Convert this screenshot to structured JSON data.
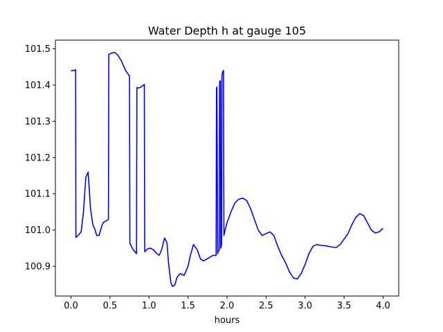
{
  "chart_data": {
    "type": "line",
    "title": "Water Depth h at gauge 105",
    "xlabel": "hours",
    "ylabel": "",
    "xlim": [
      -0.2,
      4.2
    ],
    "ylim": [
      100.818,
      101.524
    ],
    "xticks": [
      0.0,
      0.5,
      1.0,
      1.5,
      2.0,
      2.5,
      3.0,
      3.5,
      4.0
    ],
    "xtick_labels": [
      "0.0",
      "0.5",
      "1.0",
      "1.5",
      "2.0",
      "2.5",
      "3.0",
      "3.5",
      "4.0"
    ],
    "yticks": [
      100.9,
      101.0,
      101.1,
      101.2,
      101.3,
      101.4,
      101.5
    ],
    "ytick_labels": [
      "100.9",
      "101.0",
      "101.1",
      "101.2",
      "101.3",
      "101.4",
      "101.5"
    ],
    "grid": false,
    "series": [
      {
        "color": "#0000ff",
        "x": [
          0.0,
          0.03,
          0.06,
          0.063,
          0.09,
          0.13,
          0.16,
          0.19,
          0.22,
          0.25,
          0.28,
          0.31,
          0.33,
          0.36,
          0.38,
          0.4,
          0.42,
          0.45,
          0.48,
          0.485,
          0.52,
          0.56,
          0.6,
          0.65,
          0.7,
          0.75,
          0.755,
          0.8,
          0.84,
          0.845,
          0.87,
          0.9,
          0.94,
          0.945,
          0.98,
          1.02,
          1.06,
          1.1,
          1.13,
          1.16,
          1.2,
          1.23,
          1.25,
          1.28,
          1.3,
          1.33,
          1.36,
          1.4,
          1.45,
          1.5,
          1.53,
          1.57,
          1.62,
          1.66,
          1.7,
          1.74,
          1.78,
          1.82,
          1.86,
          1.865,
          1.87,
          1.88,
          1.885,
          1.9,
          1.905,
          1.915,
          1.92,
          1.925,
          1.93,
          1.935,
          1.945,
          1.95,
          1.955,
          1.96,
          1.965,
          1.975,
          2.0,
          2.05,
          2.1,
          2.15,
          2.2,
          2.25,
          2.3,
          2.35,
          2.4,
          2.45,
          2.5,
          2.55,
          2.6,
          2.65,
          2.7,
          2.75,
          2.8,
          2.85,
          2.9,
          2.95,
          3.0,
          3.05,
          3.1,
          3.15,
          3.2,
          3.25,
          3.3,
          3.35,
          3.4,
          3.45,
          3.5,
          3.55,
          3.6,
          3.65,
          3.7,
          3.75,
          3.8,
          3.85,
          3.9,
          3.95,
          4.0
        ],
        "y": [
          101.44,
          101.44,
          101.442,
          100.98,
          100.985,
          100.995,
          101.05,
          101.145,
          101.16,
          101.06,
          101.015,
          101.0,
          100.985,
          100.985,
          101.0,
          101.015,
          101.022,
          101.025,
          101.03,
          101.485,
          101.488,
          101.49,
          101.483,
          101.465,
          101.44,
          101.425,
          100.963,
          100.945,
          100.935,
          101.393,
          101.392,
          101.395,
          101.402,
          100.94,
          100.948,
          100.95,
          100.945,
          100.935,
          100.93,
          100.945,
          100.978,
          100.965,
          100.91,
          100.855,
          100.845,
          100.848,
          100.87,
          100.88,
          100.875,
          100.9,
          100.93,
          100.96,
          100.945,
          100.92,
          100.915,
          100.92,
          100.925,
          100.93,
          100.93,
          101.39,
          101.395,
          100.935,
          100.94,
          100.945,
          101.41,
          101.412,
          100.95,
          100.955,
          100.96,
          101.43,
          101.435,
          101.44,
          101.44,
          100.985,
          100.99,
          101.0,
          101.02,
          101.05,
          101.075,
          101.085,
          101.088,
          101.082,
          101.06,
          101.03,
          101.0,
          100.985,
          100.99,
          100.995,
          100.985,
          100.955,
          100.93,
          100.91,
          100.885,
          100.868,
          100.865,
          100.88,
          100.905,
          100.935,
          100.955,
          100.96,
          100.958,
          100.957,
          100.955,
          100.953,
          100.952,
          100.96,
          100.975,
          100.99,
          101.015,
          101.035,
          101.045,
          101.04,
          101.02,
          101.0,
          100.992,
          100.995,
          101.005
        ]
      }
    ]
  }
}
